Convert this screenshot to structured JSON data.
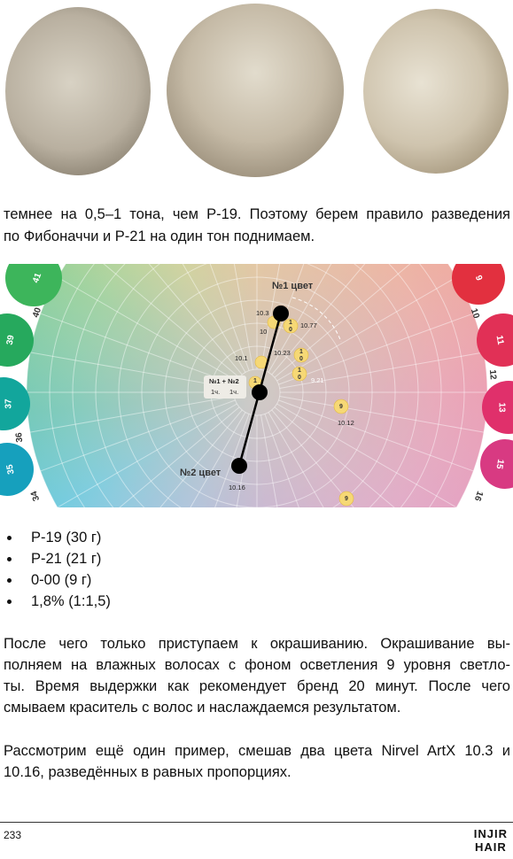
{
  "intro": {
    "lines": [
      "темнее на 0,5–1 тона, чем Р-19. Поэтому берем правило разведения",
      "по Фибоначчи и Р-21 на один тон поднимаем."
    ]
  },
  "wheel": {
    "outer_circles": [
      "41",
      "39",
      "37",
      "35",
      "9",
      "11",
      "13",
      "15"
    ],
    "outer_numbers": [
      "40",
      "36",
      "34",
      "10",
      "12",
      "16"
    ],
    "color1": "№1 цвет",
    "color2": "№2 цвет",
    "mix": "№1 + №2",
    "mix_parts": [
      "1ч.",
      "1ч."
    ],
    "shades": [
      "10.3",
      "10",
      "10.77",
      "10.1",
      "10.23",
      "9.21",
      "10.12",
      "10.16"
    ],
    "dots": [
      "1",
      "0",
      "1",
      "0",
      "1",
      "0",
      "1",
      "9",
      "9"
    ]
  },
  "bullets": [
    "Р-19 (30 г)",
    "Р-21 (21 г)",
    "0-00 (9 г)",
    "1,8% (1:1,5)"
  ],
  "body": {
    "lines": [
      "После чего только приступаем к окрашиванию. Окрашивание вы-",
      "полняем на влажных волосах с фоном осветления 9 уровня светло-",
      "ты. Время выдержки как рекомендует бренд 20 минут. После чего",
      "смываем краситель с волос и наслаждаемся результатом."
    ]
  },
  "closing": {
    "lines": [
      "Рассмотрим ещё один пример, смешав два цвета Nirvel ArtX 10.3 и",
      "10.16, разведённых в равных пропорциях."
    ]
  },
  "footer": {
    "page_number": "233",
    "logo": [
      "INJIR",
      "HAIR"
    ]
  }
}
